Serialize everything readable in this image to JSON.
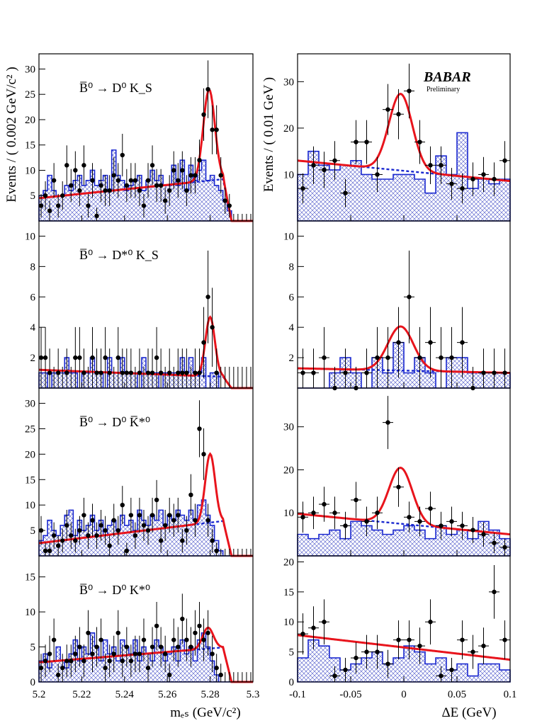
{
  "figure": {
    "experiment_logo": "BABAR",
    "logo_subtitle": "Preliminary",
    "y_axis_label_left": "Events / ( 0.002 GeV/c² )",
    "y_axis_label_right": "Events / ( 0.01 GeV )",
    "x_axis_label_left": "mₑₛ (GeV/c²)",
    "x_axis_label_right": "ΔE (GeV)",
    "x_ticks_left": [
      "5.2",
      "5.22",
      "5.24",
      "5.26",
      "5.28",
      "5.3"
    ],
    "x_ticks_right": [
      "-0.1",
      "-0.05",
      "0",
      "0.05",
      "0.1"
    ],
    "colors": {
      "fit": "#e8141c",
      "background_fit": "#1a28d0",
      "histogram": "#1a28d0",
      "hatch": "#4a54c8",
      "points": "#000000"
    }
  },
  "chart_data": [
    {
      "type": "scatter",
      "column": "mES",
      "row": 0,
      "decay_label": "B̅⁰ → D⁰ K_S",
      "xlim": [
        5.2,
        5.3
      ],
      "ylim": [
        0,
        33
      ],
      "y_ticks": [
        5,
        10,
        15,
        20,
        25,
        30
      ],
      "data_x": [
        5.201,
        5.203,
        5.205,
        5.207,
        5.209,
        5.211,
        5.213,
        5.215,
        5.217,
        5.219,
        5.221,
        5.223,
        5.225,
        5.227,
        5.229,
        5.231,
        5.233,
        5.235,
        5.237,
        5.239,
        5.241,
        5.243,
        5.245,
        5.247,
        5.249,
        5.251,
        5.253,
        5.255,
        5.257,
        5.259,
        5.261,
        5.263,
        5.265,
        5.267,
        5.269,
        5.271,
        5.273,
        5.275,
        5.277,
        5.279,
        5.281,
        5.283,
        5.285,
        5.287,
        5.289,
        5.291,
        5.293,
        5.295,
        5.297,
        5.299
      ],
      "data_y": [
        3,
        5,
        2,
        8,
        3,
        5,
        11,
        7,
        10,
        6,
        11,
        3,
        8,
        1,
        7,
        6,
        6,
        9,
        8,
        13,
        7,
        8,
        8,
        6,
        3,
        8,
        11,
        7,
        7,
        4,
        6,
        10,
        8,
        10,
        6,
        9,
        9,
        12,
        21,
        26,
        18,
        18,
        9,
        4,
        3,
        0,
        0,
        0,
        0,
        0
      ],
      "histogram": [
        5,
        6,
        9,
        6,
        5,
        5,
        7,
        6,
        8,
        9,
        7,
        8,
        10,
        7,
        8,
        9,
        6,
        14,
        9,
        8,
        6,
        7,
        8,
        9,
        6,
        8,
        10,
        8,
        9,
        7,
        7,
        11,
        7,
        12,
        6,
        11,
        8,
        10,
        12,
        8,
        9,
        7,
        6,
        4,
        2,
        0,
        0,
        0,
        0,
        0
      ],
      "fit": {
        "background_start": 4.5,
        "background_end": 8.2,
        "endpoint": 5.29,
        "peak_mu": 5.2795,
        "peak_sigma": 0.0027,
        "peak_height": 18
      }
    },
    {
      "type": "scatter",
      "column": "dE",
      "row": 0,
      "xlim": [
        -0.1,
        0.1
      ],
      "ylim": [
        0,
        36
      ],
      "y_ticks": [
        10,
        20,
        30
      ],
      "data_x": [
        -0.095,
        -0.085,
        -0.075,
        -0.065,
        -0.055,
        -0.045,
        -0.035,
        -0.025,
        -0.015,
        -0.005,
        0.005,
        0.015,
        0.025,
        0.035,
        0.045,
        0.055,
        0.065,
        0.075,
        0.085,
        0.095
      ],
      "data_y": [
        7,
        12,
        11,
        13,
        6,
        17,
        17,
        10,
        24,
        23,
        28,
        17,
        12,
        12,
        8,
        7,
        9,
        10,
        9,
        13
      ],
      "histogram": [
        10,
        15,
        12,
        11,
        12,
        13,
        10,
        9,
        9,
        10,
        10,
        9,
        6,
        14,
        10,
        19,
        7,
        9,
        8,
        9
      ],
      "fit": {
        "background_start": 13,
        "background_end": 8.6,
        "peak_mu": -0.003,
        "peak_sigma": 0.011,
        "peak_height": 16.5
      }
    },
    {
      "type": "scatter",
      "column": "mES",
      "row": 1,
      "decay_label": "B̅⁰ → D*⁰ K_S",
      "xlim": [
        5.2,
        5.3
      ],
      "ylim": [
        0,
        11
      ],
      "y_ticks": [
        2,
        4,
        6,
        8,
        10
      ],
      "data_x": [
        5.201,
        5.203,
        5.205,
        5.207,
        5.209,
        5.211,
        5.213,
        5.215,
        5.217,
        5.219,
        5.221,
        5.223,
        5.225,
        5.227,
        5.229,
        5.231,
        5.233,
        5.235,
        5.237,
        5.239,
        5.241,
        5.243,
        5.245,
        5.247,
        5.249,
        5.251,
        5.253,
        5.255,
        5.257,
        5.259,
        5.261,
        5.263,
        5.265,
        5.267,
        5.269,
        5.271,
        5.273,
        5.275,
        5.277,
        5.279,
        5.281,
        5.283,
        5.285,
        5.287,
        5.289,
        5.291,
        5.293,
        5.295,
        5.297,
        5.299
      ],
      "data_y": [
        2,
        2,
        1,
        0,
        1,
        0,
        1,
        0,
        2,
        2,
        1,
        0,
        2,
        1,
        1,
        2,
        1,
        0,
        2,
        1,
        1,
        1,
        0,
        1,
        0,
        1,
        1,
        2,
        1,
        0,
        1,
        0,
        1,
        1,
        1,
        0,
        1,
        1,
        3,
        6,
        4,
        1,
        0,
        0,
        0,
        0,
        0,
        0,
        0,
        0
      ],
      "histogram": [
        1,
        1,
        0,
        1,
        1,
        1,
        2,
        1,
        1,
        0,
        1,
        1,
        2,
        1,
        1,
        0,
        2,
        1,
        1,
        2,
        1,
        1,
        1,
        0,
        2,
        1,
        1,
        1,
        0,
        1,
        1,
        1,
        1,
        2,
        1,
        2,
        1,
        1,
        2,
        0,
        1,
        1,
        0,
        0,
        0,
        0,
        0,
        0,
        0,
        0
      ],
      "fit": {
        "background_start": 1.2,
        "background_end": 0.75,
        "endpoint": 5.29,
        "peak_mu": 5.28,
        "peak_sigma": 0.0022,
        "peak_height": 3.9
      }
    },
    {
      "type": "scatter",
      "column": "dE",
      "row": 1,
      "xlim": [
        -0.1,
        0.1
      ],
      "ylim": [
        0,
        11
      ],
      "y_ticks": [
        2,
        4,
        6,
        8,
        10
      ],
      "data_x": [
        -0.095,
        -0.085,
        -0.075,
        -0.065,
        -0.055,
        -0.045,
        -0.035,
        -0.025,
        -0.015,
        -0.005,
        0.005,
        0.015,
        0.025,
        0.035,
        0.045,
        0.055,
        0.065,
        0.075,
        0.085,
        0.095
      ],
      "data_y": [
        1,
        1,
        2,
        0,
        1,
        0,
        1,
        2,
        2,
        3,
        6,
        2,
        3,
        2,
        2,
        3,
        0,
        1,
        1,
        1
      ],
      "histogram": [
        0,
        0,
        0,
        1,
        2,
        1,
        0,
        2,
        1,
        3,
        1,
        2,
        1,
        0,
        2,
        2,
        1,
        1,
        1,
        1
      ],
      "fit": {
        "background_start": 1.3,
        "background_end": 1.0,
        "peak_mu": -0.003,
        "peak_sigma": 0.012,
        "peak_height": 2.9
      }
    },
    {
      "type": "scatter",
      "column": "mES",
      "row": 2,
      "decay_label": "B̅⁰ → D⁰ K̅*⁰",
      "xlim": [
        5.2,
        5.3
      ],
      "ylim": [
        0,
        33
      ],
      "y_ticks": [
        5,
        10,
        15,
        20,
        25,
        30
      ],
      "data_x": [
        5.201,
        5.203,
        5.205,
        5.207,
        5.209,
        5.211,
        5.213,
        5.215,
        5.217,
        5.219,
        5.221,
        5.223,
        5.225,
        5.227,
        5.229,
        5.231,
        5.233,
        5.235,
        5.237,
        5.239,
        5.241,
        5.243,
        5.245,
        5.247,
        5.249,
        5.251,
        5.253,
        5.255,
        5.257,
        5.259,
        5.261,
        5.263,
        5.265,
        5.267,
        5.269,
        5.271,
        5.273,
        5.275,
        5.277,
        5.279,
        5.281,
        5.283,
        5.285,
        5.287,
        5.289,
        5.291,
        5.293,
        5.295,
        5.297,
        5.299
      ],
      "data_y": [
        5,
        1,
        1,
        4,
        2,
        3,
        6,
        4,
        3,
        5,
        8,
        4,
        7,
        4,
        6,
        5,
        2,
        7,
        5,
        10,
        1,
        8,
        4,
        8,
        6,
        5,
        8,
        11,
        3,
        6,
        8,
        7,
        8,
        3,
        5,
        12,
        7,
        25,
        20,
        7,
        3,
        1,
        0,
        0,
        0,
        0,
        0,
        0,
        0,
        0
      ],
      "histogram": [
        3,
        4,
        7,
        5,
        4,
        6,
        8,
        9,
        4,
        7,
        5,
        6,
        8,
        5,
        7,
        4,
        6,
        7,
        5,
        8,
        6,
        7,
        5,
        9,
        7,
        6,
        8,
        7,
        9,
        6,
        8,
        7,
        9,
        8,
        7,
        9,
        7,
        10,
        11,
        8,
        6,
        3,
        1,
        0,
        0,
        0,
        0,
        0,
        0,
        0
      ],
      "fit": {
        "background_start": 2.5,
        "background_end": 6.8,
        "endpoint": 5.29,
        "peak_mu": 5.28,
        "peak_sigma": 0.0023,
        "peak_height": 13.5
      }
    },
    {
      "type": "scatter",
      "column": "dE",
      "row": 2,
      "xlim": [
        -0.1,
        0.1
      ],
      "ylim": [
        0,
        39
      ],
      "y_ticks": [
        10,
        20,
        30
      ],
      "data_x": [
        -0.095,
        -0.085,
        -0.075,
        -0.065,
        -0.055,
        -0.045,
        -0.035,
        -0.025,
        -0.015,
        -0.005,
        0.005,
        0.015,
        0.025,
        0.035,
        0.045,
        0.055,
        0.065,
        0.075,
        0.085,
        0.095
      ],
      "data_y": [
        9,
        10,
        12,
        10,
        7,
        13,
        8,
        10,
        31,
        16,
        9,
        8,
        11,
        7,
        8,
        7,
        6,
        5,
        3,
        2
      ],
      "histogram": [
        5,
        4,
        5,
        6,
        4,
        8,
        7,
        6,
        5,
        6,
        7,
        6,
        4,
        7,
        5,
        6,
        4,
        8,
        6,
        4
      ],
      "fit": {
        "background_start": 9.8,
        "background_end": 5,
        "peak_mu": -0.003,
        "peak_sigma": 0.011,
        "peak_height": 13
      }
    },
    {
      "type": "scatter",
      "column": "mES",
      "row": 3,
      "decay_label": "B̅⁰ → D⁰ K*⁰",
      "xlim": [
        5.2,
        5.3
      ],
      "ylim": [
        0,
        18
      ],
      "y_ticks": [
        0,
        5,
        10,
        15
      ],
      "data_x": [
        5.201,
        5.203,
        5.205,
        5.207,
        5.209,
        5.211,
        5.213,
        5.215,
        5.217,
        5.219,
        5.221,
        5.223,
        5.225,
        5.227,
        5.229,
        5.231,
        5.233,
        5.235,
        5.237,
        5.239,
        5.241,
        5.243,
        5.245,
        5.247,
        5.249,
        5.251,
        5.253,
        5.255,
        5.257,
        5.259,
        5.261,
        5.263,
        5.265,
        5.267,
        5.269,
        5.271,
        5.273,
        5.275,
        5.277,
        5.279,
        5.281,
        5.283,
        5.285,
        5.287,
        5.289,
        5.291,
        5.293,
        5.295,
        5.297,
        5.299
      ],
      "data_y": [
        2,
        3,
        4,
        6,
        1,
        2,
        3,
        3,
        4,
        5,
        3,
        7,
        4,
        5,
        6,
        2,
        3,
        4,
        7,
        3,
        5,
        3,
        4,
        4,
        6,
        2,
        5,
        8,
        5,
        4,
        1,
        6,
        5,
        9,
        6,
        5,
        7,
        8,
        6,
        7,
        4,
        2,
        1,
        0,
        0,
        0,
        0,
        0,
        0,
        0
      ],
      "histogram": [
        3,
        4,
        2,
        3,
        5,
        3,
        2,
        4,
        6,
        3,
        5,
        4,
        7,
        5,
        3,
        6,
        4,
        5,
        3,
        6,
        5,
        4,
        6,
        3,
        5,
        4,
        3,
        6,
        5,
        3,
        4,
        5,
        3,
        6,
        4,
        5,
        3,
        6,
        7,
        5,
        3,
        1,
        0,
        0,
        0,
        0,
        0,
        0,
        0,
        0
      ],
      "fit": {
        "background_start": 2.8,
        "background_end": 4.9,
        "endpoint": 5.29,
        "peak_mu": 5.279,
        "peak_sigma": 0.0025,
        "peak_height": 3.0
      }
    },
    {
      "type": "scatter",
      "column": "dE",
      "row": 3,
      "xlim": [
        -0.1,
        0.1
      ],
      "ylim": [
        0,
        21
      ],
      "y_ticks": [
        0,
        5,
        10,
        15,
        20
      ],
      "data_x": [
        -0.095,
        -0.085,
        -0.075,
        -0.065,
        -0.055,
        -0.045,
        -0.035,
        -0.025,
        -0.015,
        -0.005,
        0.005,
        0.015,
        0.025,
        0.035,
        0.045,
        0.055,
        0.065,
        0.075,
        0.085,
        0.095
      ],
      "data_y": [
        8,
        9,
        10,
        1,
        2,
        4,
        5,
        5,
        3,
        7,
        7,
        6,
        10,
        1,
        2,
        7,
        5,
        6,
        15,
        7
      ],
      "histogram": [
        4,
        7,
        6,
        4,
        2,
        3,
        4,
        5,
        3,
        4,
        6,
        5,
        3,
        4,
        2,
        3,
        1,
        3,
        3,
        2
      ],
      "fit": {
        "background_start": 7.8,
        "background_end": 3.7
      }
    }
  ]
}
